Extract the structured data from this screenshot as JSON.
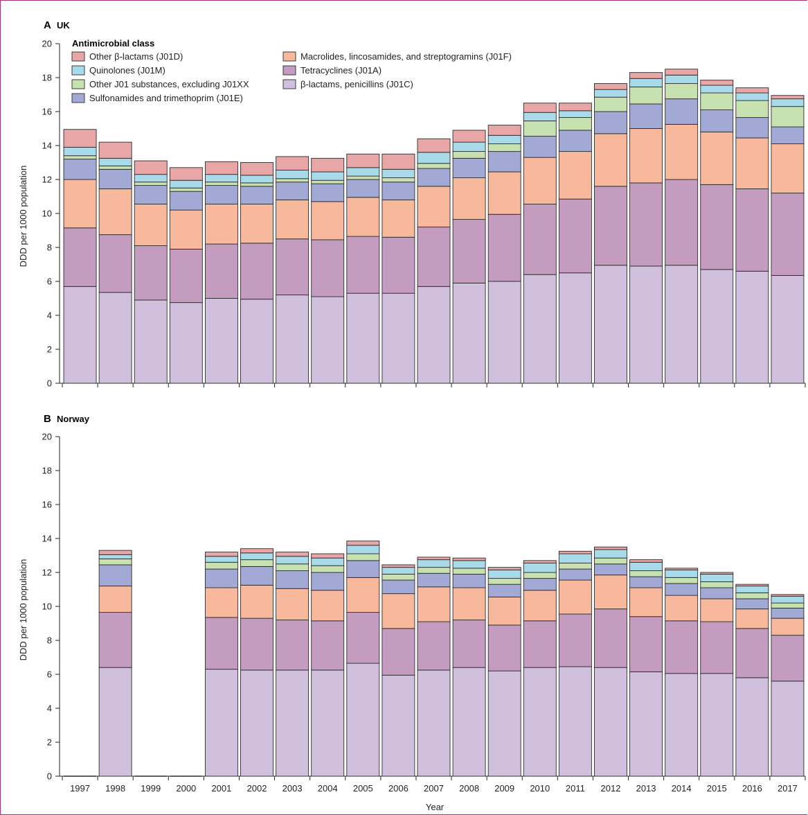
{
  "chart_data": [
    {
      "panel": "A",
      "title": "UK",
      "type": "bar",
      "stacked": true,
      "xlabel": "",
      "ylabel": "DDD per 1000 population",
      "ylim": [
        0,
        20
      ],
      "yticks": [
        0,
        2,
        4,
        6,
        8,
        10,
        12,
        14,
        16,
        18,
        20
      ],
      "legend_title": "Antimicrobial class",
      "legend_position": "top-left",
      "categories": [
        "1997",
        "1998",
        "1999",
        "2000",
        "2001",
        "2002",
        "2003",
        "2004",
        "2005",
        "2006",
        "2007",
        "2008",
        "2009",
        "2010",
        "2011",
        "2012",
        "2013",
        "2014",
        "2015",
        "2016",
        "2017"
      ],
      "series": [
        {
          "name": "β-lactams, penicillins (J01C)",
          "color": "#d0c0de",
          "values": [
            5.7,
            5.35,
            4.9,
            4.75,
            5.0,
            4.95,
            5.2,
            5.1,
            5.3,
            5.3,
            5.7,
            5.9,
            6.0,
            6.4,
            6.5,
            6.95,
            6.9,
            6.95,
            6.7,
            6.6,
            6.35
          ]
        },
        {
          "name": "Tetracyclines (J01A)",
          "color": "#c49cc0",
          "values": [
            3.45,
            3.4,
            3.2,
            3.15,
            3.2,
            3.3,
            3.3,
            3.35,
            3.35,
            3.3,
            3.5,
            3.75,
            3.95,
            4.15,
            4.35,
            4.65,
            4.9,
            5.05,
            5.0,
            4.85,
            4.85
          ]
        },
        {
          "name": "Macrolides, lincosamides, and streptogramins (J01F)",
          "color": "#f8b89c",
          "values": [
            2.85,
            2.7,
            2.45,
            2.3,
            2.35,
            2.3,
            2.3,
            2.25,
            2.3,
            2.2,
            2.4,
            2.45,
            2.5,
            2.75,
            2.8,
            3.1,
            3.2,
            3.25,
            3.1,
            3.0,
            2.9
          ]
        },
        {
          "name": "Sulfonamides and trimethoprim (J01E)",
          "color": "#a3a9d5",
          "values": [
            1.2,
            1.15,
            1.1,
            1.1,
            1.1,
            1.05,
            1.05,
            1.05,
            1.05,
            1.05,
            1.05,
            1.15,
            1.2,
            1.25,
            1.25,
            1.3,
            1.45,
            1.5,
            1.3,
            1.2,
            1.0
          ]
        },
        {
          "name": "Other J01 substances, excluding J01XX",
          "color": "#c8e1b0",
          "values": [
            0.2,
            0.2,
            0.2,
            0.2,
            0.2,
            0.2,
            0.2,
            0.2,
            0.2,
            0.25,
            0.3,
            0.4,
            0.45,
            0.9,
            0.75,
            0.85,
            1.0,
            0.9,
            1.0,
            1.0,
            1.2
          ]
        },
        {
          "name": "Quinolones (J01M)",
          "color": "#a8daea",
          "values": [
            0.5,
            0.45,
            0.45,
            0.45,
            0.45,
            0.45,
            0.5,
            0.5,
            0.5,
            0.5,
            0.65,
            0.55,
            0.5,
            0.5,
            0.4,
            0.45,
            0.5,
            0.5,
            0.45,
            0.45,
            0.45
          ]
        },
        {
          "name": "Other β-lactams (J01D)",
          "color": "#e8a6a6",
          "values": [
            1.05,
            0.95,
            0.8,
            0.75,
            0.75,
            0.75,
            0.8,
            0.8,
            0.8,
            0.9,
            0.8,
            0.7,
            0.6,
            0.55,
            0.45,
            0.35,
            0.35,
            0.35,
            0.3,
            0.3,
            0.2
          ]
        }
      ]
    },
    {
      "panel": "B",
      "title": "Norway",
      "type": "bar",
      "stacked": true,
      "xlabel": "Year",
      "ylabel": "DDD per 1000 population",
      "ylim": [
        0,
        20
      ],
      "yticks": [
        0,
        2,
        4,
        6,
        8,
        10,
        12,
        14,
        16,
        18,
        20
      ],
      "categories": [
        "1997",
        "1998",
        "1999",
        "2000",
        "2001",
        "2002",
        "2003",
        "2004",
        "2005",
        "2006",
        "2007",
        "2008",
        "2009",
        "2010",
        "2011",
        "2012",
        "2013",
        "2014",
        "2015",
        "2016",
        "2017"
      ],
      "series": [
        {
          "name": "β-lactams, penicillins (J01C)",
          "color": "#d0c0de",
          "values": [
            0,
            6.4,
            0,
            0,
            6.3,
            6.25,
            6.25,
            6.25,
            6.65,
            5.95,
            6.25,
            6.4,
            6.2,
            6.4,
            6.45,
            6.4,
            6.15,
            6.05,
            6.05,
            5.8,
            5.6
          ]
        },
        {
          "name": "Tetracyclines (J01A)",
          "color": "#c49cc0",
          "values": [
            0,
            3.25,
            0,
            0,
            3.05,
            3.05,
            2.95,
            2.9,
            3.0,
            2.75,
            2.85,
            2.8,
            2.7,
            2.75,
            3.1,
            3.45,
            3.25,
            3.1,
            3.05,
            2.9,
            2.7
          ]
        },
        {
          "name": "Macrolides, lincosamides, and streptogramins (J01F)",
          "color": "#f8b89c",
          "values": [
            0,
            1.55,
            0,
            0,
            1.75,
            1.95,
            1.85,
            1.8,
            2.05,
            2.05,
            2.05,
            1.9,
            1.65,
            1.8,
            2.0,
            2.0,
            1.7,
            1.5,
            1.35,
            1.15,
            1.0
          ]
        },
        {
          "name": "Sulfonamides and trimethoprim (J01E)",
          "color": "#a3a9d5",
          "values": [
            0,
            1.25,
            0,
            0,
            1.1,
            1.1,
            1.05,
            1.05,
            1.0,
            0.8,
            0.8,
            0.8,
            0.75,
            0.7,
            0.65,
            0.65,
            0.65,
            0.7,
            0.65,
            0.6,
            0.6
          ]
        },
        {
          "name": "Other J01 substances, excluding J01XX",
          "color": "#c8e1b0",
          "values": [
            0,
            0.35,
            0,
            0,
            0.4,
            0.4,
            0.4,
            0.4,
            0.4,
            0.35,
            0.35,
            0.35,
            0.35,
            0.35,
            0.35,
            0.35,
            0.35,
            0.35,
            0.35,
            0.35,
            0.3
          ]
        },
        {
          "name": "Quinolones (J01M)",
          "color": "#a8daea",
          "values": [
            0,
            0.25,
            0,
            0,
            0.35,
            0.4,
            0.45,
            0.45,
            0.5,
            0.4,
            0.45,
            0.45,
            0.5,
            0.55,
            0.55,
            0.5,
            0.5,
            0.45,
            0.45,
            0.4,
            0.4
          ]
        },
        {
          "name": "Other β-lactams (J01D)",
          "color": "#e8a6a6",
          "values": [
            0,
            0.25,
            0,
            0,
            0.25,
            0.25,
            0.25,
            0.25,
            0.25,
            0.15,
            0.15,
            0.15,
            0.15,
            0.15,
            0.15,
            0.15,
            0.15,
            0.1,
            0.1,
            0.1,
            0.1
          ]
        }
      ]
    }
  ]
}
